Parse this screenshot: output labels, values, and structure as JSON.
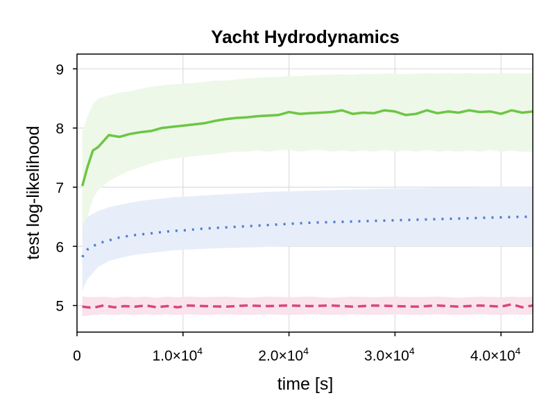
{
  "chart_data": {
    "type": "line",
    "title": "Yacht Hydrodynamics",
    "xlabel": "time [s]",
    "ylabel": "test log-likelihood",
    "xlim": [
      0,
      43000
    ],
    "ylim": [
      4.55,
      9.25
    ],
    "grid": true,
    "xticks": [
      {
        "value": 0,
        "label": "0"
      },
      {
        "value": 10000,
        "label": "1.0×10",
        "exp": "4"
      },
      {
        "value": 20000,
        "label": "2.0×10",
        "exp": "4"
      },
      {
        "value": 30000,
        "label": "3.0×10",
        "exp": "4"
      },
      {
        "value": 40000,
        "label": "4.0×10",
        "exp": "4"
      }
    ],
    "yticks": [
      {
        "value": 5,
        "label": "5"
      },
      {
        "value": 6,
        "label": "6"
      },
      {
        "value": 7,
        "label": "7"
      },
      {
        "value": 8,
        "label": "8"
      },
      {
        "value": 9,
        "label": "9"
      }
    ],
    "series": [
      {
        "color": "#6cc644",
        "band_color": "#eef8e8",
        "dash": "solid",
        "x": [
          500,
          1000,
          1500,
          2000,
          3000,
          4000,
          5000,
          6000,
          7000,
          8000,
          9000,
          10000,
          11000,
          12000,
          13000,
          14000,
          15000,
          16000,
          17000,
          18000,
          19000,
          20000,
          21000,
          22000,
          23000,
          24000,
          25000,
          26000,
          27000,
          28000,
          29000,
          30000,
          31000,
          32000,
          33000,
          34000,
          35000,
          36000,
          37000,
          38000,
          39000,
          40000,
          41000,
          42000,
          43000
        ],
        "y": [
          7.02,
          7.35,
          7.62,
          7.68,
          7.88,
          7.85,
          7.9,
          7.93,
          7.95,
          8.0,
          8.02,
          8.04,
          8.06,
          8.08,
          8.12,
          8.15,
          8.17,
          8.18,
          8.2,
          8.21,
          8.22,
          8.27,
          8.24,
          8.25,
          8.26,
          8.27,
          8.3,
          8.24,
          8.26,
          8.25,
          8.3,
          8.28,
          8.22,
          8.24,
          8.3,
          8.25,
          8.28,
          8.26,
          8.3,
          8.27,
          8.28,
          8.24,
          8.3,
          8.26,
          8.28
        ],
        "lower": [
          6.1,
          6.5,
          6.8,
          6.95,
          7.1,
          7.2,
          7.28,
          7.34,
          7.4,
          7.45,
          7.48,
          7.5,
          7.52,
          7.54,
          7.56,
          7.58,
          7.6,
          7.6,
          7.62,
          7.6,
          7.62,
          7.63,
          7.6,
          7.62,
          7.63,
          7.6,
          7.62,
          7.6,
          7.62,
          7.6,
          7.63,
          7.6,
          7.62,
          7.6,
          7.63,
          7.6,
          7.62,
          7.6,
          7.62,
          7.6,
          7.63,
          7.6,
          7.62,
          7.6,
          7.6
        ],
        "upper": [
          7.95,
          8.2,
          8.4,
          8.5,
          8.55,
          8.6,
          8.62,
          8.66,
          8.7,
          8.72,
          8.74,
          8.75,
          8.76,
          8.78,
          8.8,
          8.8,
          8.82,
          8.84,
          8.85,
          8.86,
          8.86,
          8.88,
          8.88,
          8.89,
          8.9,
          8.9,
          8.91,
          8.9,
          8.92,
          8.91,
          8.92,
          8.92,
          8.91,
          8.92,
          8.93,
          8.92,
          8.93,
          8.92,
          8.93,
          8.92,
          8.93,
          8.92,
          8.93,
          8.92,
          8.93
        ]
      },
      {
        "color": "#4f7ed1",
        "band_color": "#e8eef9",
        "dash": "dotted",
        "x": [
          500,
          1000,
          2000,
          3000,
          4000,
          5000,
          6000,
          7000,
          8000,
          9000,
          10000,
          12000,
          14000,
          16000,
          18000,
          20000,
          22000,
          24000,
          26000,
          28000,
          30000,
          32000,
          34000,
          36000,
          38000,
          40000,
          42000,
          43000
        ],
        "y": [
          5.82,
          5.95,
          6.05,
          6.1,
          6.15,
          6.18,
          6.2,
          6.22,
          6.24,
          6.26,
          6.27,
          6.3,
          6.32,
          6.34,
          6.36,
          6.38,
          6.4,
          6.41,
          6.42,
          6.43,
          6.44,
          6.45,
          6.46,
          6.47,
          6.48,
          6.49,
          6.5,
          6.5
        ],
        "lower": [
          5.25,
          5.45,
          5.65,
          5.75,
          5.8,
          5.84,
          5.87,
          5.89,
          5.91,
          5.93,
          5.94,
          5.96,
          5.97,
          5.98,
          5.99,
          6.0,
          6.0,
          6.0,
          6.0,
          6.0,
          6.0,
          6.0,
          6.0,
          6.0,
          6.0,
          6.0,
          6.0,
          6.0
        ],
        "upper": [
          6.35,
          6.5,
          6.6,
          6.66,
          6.7,
          6.74,
          6.77,
          6.79,
          6.81,
          6.83,
          6.84,
          6.86,
          6.88,
          6.9,
          6.92,
          6.93,
          6.94,
          6.95,
          6.96,
          6.97,
          6.98,
          6.98,
          6.99,
          6.99,
          7.0,
          7.0,
          7.0,
          7.0
        ]
      },
      {
        "color": "#d9467a",
        "band_color": "#f9e3ec",
        "dash": "dashed",
        "x": [
          500,
          1500,
          2500,
          3500,
          4500,
          5500,
          6500,
          7500,
          8500,
          9500,
          10500,
          12000,
          14000,
          16000,
          18000,
          20000,
          22000,
          24000,
          26000,
          28000,
          30000,
          32000,
          34000,
          36000,
          38000,
          40000,
          41000,
          42000,
          43000
        ],
        "y": [
          4.98,
          4.96,
          5.0,
          4.97,
          4.99,
          4.98,
          5.0,
          4.97,
          4.99,
          4.97,
          5.0,
          4.99,
          4.98,
          5.0,
          4.99,
          5.0,
          4.99,
          5.0,
          4.98,
          5.0,
          4.99,
          4.98,
          5.0,
          4.98,
          5.0,
          4.98,
          5.02,
          4.97,
          5.0
        ],
        "lower": [
          4.82,
          4.84,
          4.85,
          4.84,
          4.85,
          4.84,
          4.85,
          4.84,
          4.85,
          4.84,
          4.85,
          4.84,
          4.85,
          4.84,
          4.85,
          4.84,
          4.85,
          4.84,
          4.85,
          4.84,
          4.85,
          4.84,
          4.85,
          4.84,
          4.85,
          4.84,
          4.85,
          4.84,
          4.85
        ],
        "upper": [
          5.15,
          5.14,
          5.15,
          5.13,
          5.15,
          5.14,
          5.15,
          5.13,
          5.15,
          5.14,
          5.15,
          5.14,
          5.15,
          5.13,
          5.15,
          5.14,
          5.15,
          5.13,
          5.15,
          5.14,
          5.15,
          5.14,
          5.15,
          5.13,
          5.15,
          5.14,
          5.15,
          5.14,
          5.15
        ]
      }
    ]
  }
}
